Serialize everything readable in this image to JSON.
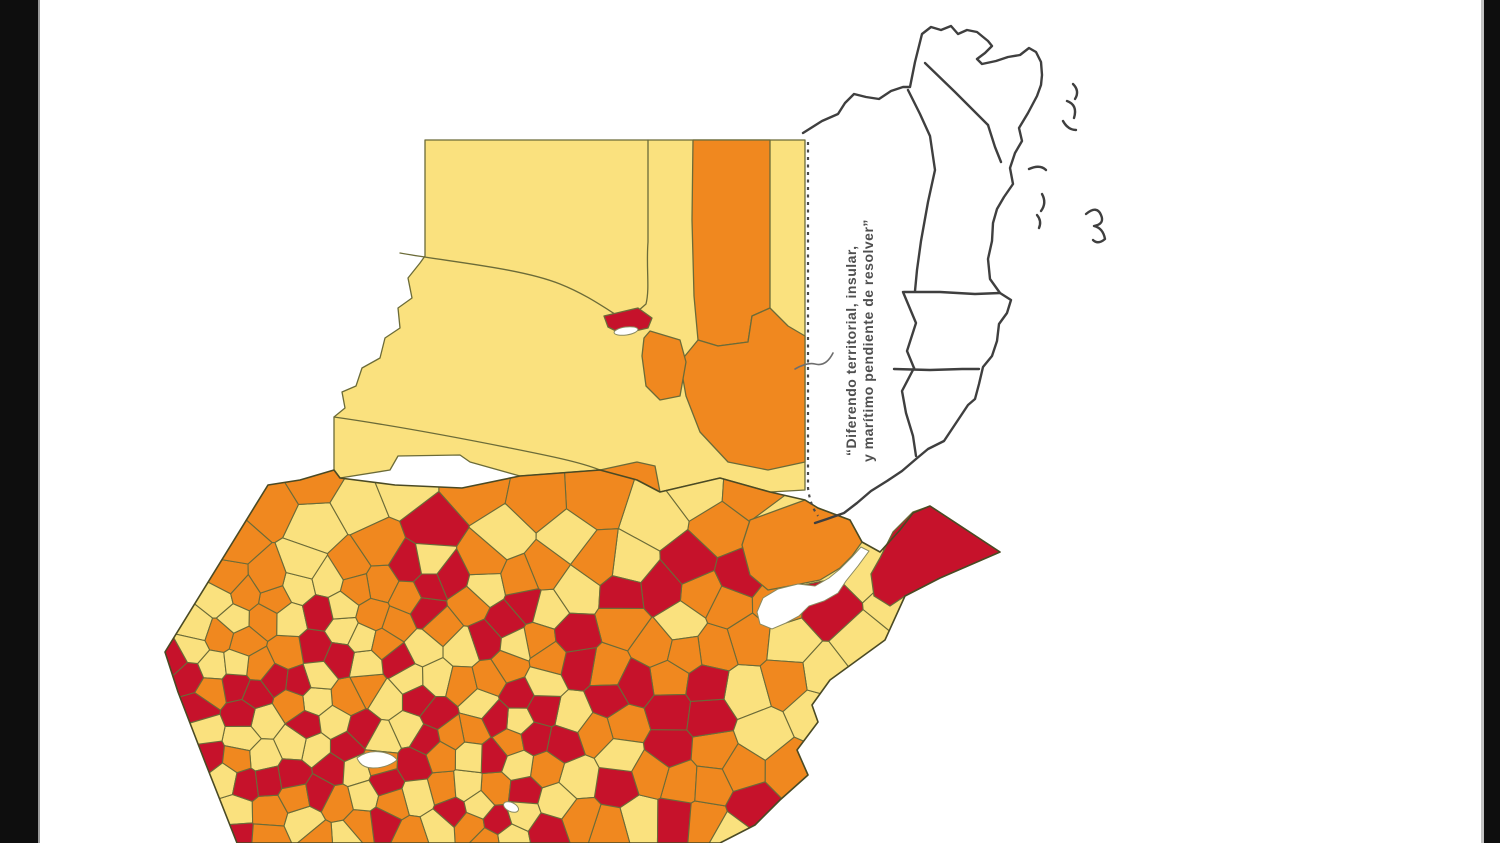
{
  "page": {
    "background": "#ffffff",
    "letterbox_color": "#0e0e0e"
  },
  "map": {
    "name": "guatemala-municipal-choropleth-with-belize",
    "annotation": {
      "line1": "“Diferendo territorial, insular,",
      "line2": "y marítimo pendiente de resolver”",
      "color": "#4f4f4f"
    },
    "choropleth_colors": {
      "low": "#FAE17E",
      "medium": "#F0881F",
      "high": "#C6122B"
    },
    "border_color": "#6b6b38",
    "outline_color": "#4a4a24",
    "neighbor_outline_color": "#3f3f3f",
    "water_color": "#ffffff",
    "disputed_line_color": "#4a4a4a",
    "disputed_border_style": "dashed"
  }
}
